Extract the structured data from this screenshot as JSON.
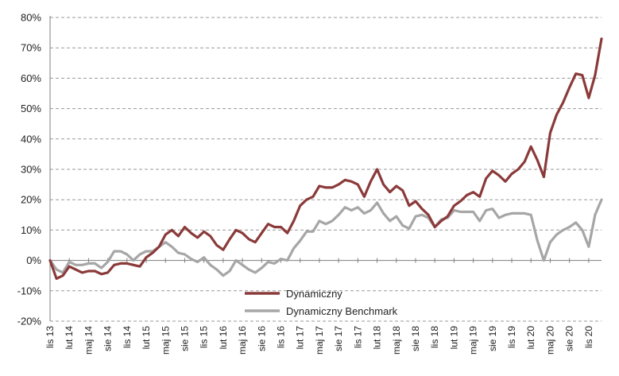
{
  "chart_data": {
    "type": "line",
    "title": "",
    "xlabel": "",
    "ylabel": "",
    "ylim": [
      -20,
      80
    ],
    "y_ticks": [
      "-20%",
      "-10%",
      "0%",
      "10%",
      "20%",
      "30%",
      "40%",
      "50%",
      "60%",
      "70%",
      "80%"
    ],
    "y_tick_values": [
      -20,
      -10,
      0,
      10,
      20,
      30,
      40,
      50,
      60,
      70,
      80
    ],
    "grid": "horizontal dashed",
    "legend_position": "bottom-center",
    "x_tick_labels": [
      "lis 13",
      "lut 14",
      "maj 14",
      "sie 14",
      "lis 14",
      "lut 15",
      "maj 15",
      "sie 15",
      "lis 15",
      "lut 16",
      "maj 16",
      "sie 16",
      "lis 16",
      "lut 17",
      "maj 17",
      "sie 17",
      "lis 17",
      "lut 18",
      "maj 18",
      "sie 18",
      "lis 18",
      "lut 19",
      "maj 19",
      "sie 19",
      "lis 19",
      "lut 20",
      "maj 20",
      "sie 20",
      "lis 20"
    ],
    "series": [
      {
        "name": "Dynamiczny",
        "color": "#8b3a3a",
        "values": [
          0,
          -6,
          -5,
          -2,
          -3,
          -4,
          -3.5,
          -3.5,
          -4.5,
          -4,
          -1.5,
          -1,
          -1,
          -1.5,
          -2,
          1,
          2.5,
          4.5,
          8.5,
          10,
          8,
          11,
          9,
          7.5,
          9.5,
          8,
          5,
          3.5,
          7,
          10,
          9,
          7,
          6,
          9,
          12,
          11,
          11,
          9,
          13,
          18,
          20,
          21,
          24.5,
          24,
          24,
          25,
          26.5,
          26,
          25,
          21,
          26,
          30,
          25,
          22.5,
          24.5,
          23,
          18,
          19.5,
          17,
          15,
          11,
          13,
          14.5,
          18,
          19.5,
          21.5,
          22.5,
          21,
          27,
          29.5,
          28,
          26,
          28.5,
          30,
          32.5,
          37.5,
          33,
          27.5,
          42,
          48,
          52,
          57,
          61.5,
          61,
          53.5,
          61,
          73
        ]
      },
      {
        "name": "Dynamiczny Benchmark",
        "color": "#a6a6a6",
        "values": [
          0,
          -3,
          -4,
          -0.5,
          -1.5,
          -1.5,
          -1,
          -1,
          -2.5,
          -0.5,
          3,
          3,
          2,
          0,
          2,
          3,
          3,
          4.5,
          6,
          4.5,
          2.5,
          2,
          0.5,
          -0.5,
          1,
          -1.5,
          -3,
          -5,
          -3.5,
          0,
          -1.5,
          -3,
          -4,
          -2.5,
          -0.5,
          -1,
          0.5,
          0,
          4,
          6.5,
          9.5,
          9.5,
          13,
          12,
          13,
          15,
          17.5,
          16.5,
          17.5,
          15.5,
          16.5,
          19,
          15.5,
          13,
          14.5,
          11.5,
          10.5,
          14.5,
          15,
          14,
          11,
          13.5,
          14,
          16.5,
          16,
          16,
          16,
          13,
          16.5,
          17,
          14,
          15,
          15.5,
          15.5,
          15.5,
          15,
          6.5,
          0,
          6,
          8.5,
          10,
          11,
          12.5,
          10,
          4.5,
          15,
          20
        ]
      }
    ]
  }
}
